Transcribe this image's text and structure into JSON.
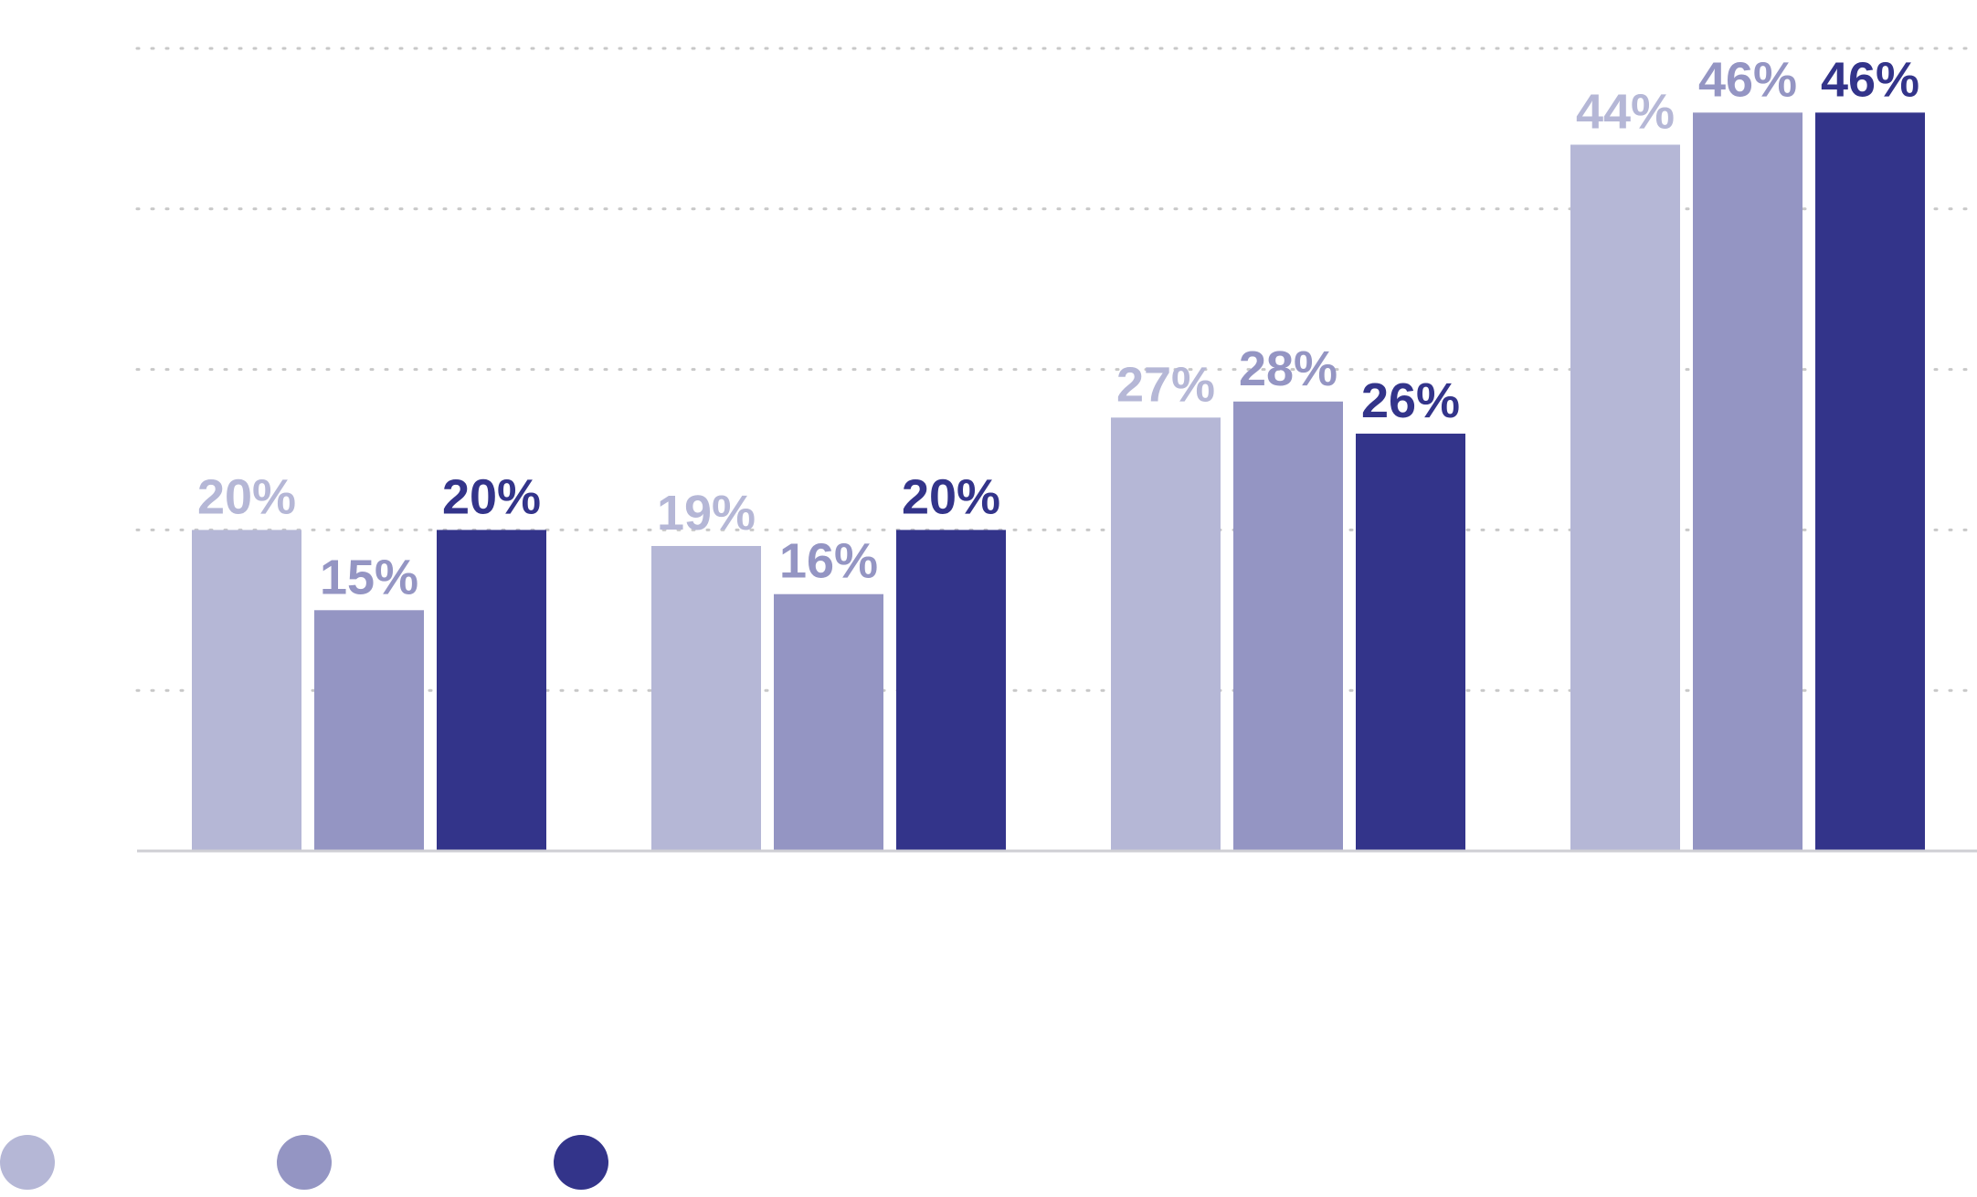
{
  "chart_data": {
    "type": "bar",
    "ylim": [
      0,
      50
    ],
    "grid": true,
    "legend_placement": "bottom-left",
    "series": [
      {
        "values": [
          20,
          19,
          27,
          44
        ],
        "labels": [
          "20%",
          "19%",
          "27%",
          "44%"
        ],
        "color": "#b5b7d6"
      },
      {
        "values": [
          15,
          16,
          28,
          46
        ],
        "labels": [
          "15%",
          "16%",
          "28%",
          "46%"
        ],
        "color": "#9495c3"
      },
      {
        "values": [
          20,
          20,
          26,
          46
        ],
        "labels": [
          "20%",
          "20%",
          "26%",
          "46%"
        ],
        "color": "#33348a"
      }
    ]
  }
}
